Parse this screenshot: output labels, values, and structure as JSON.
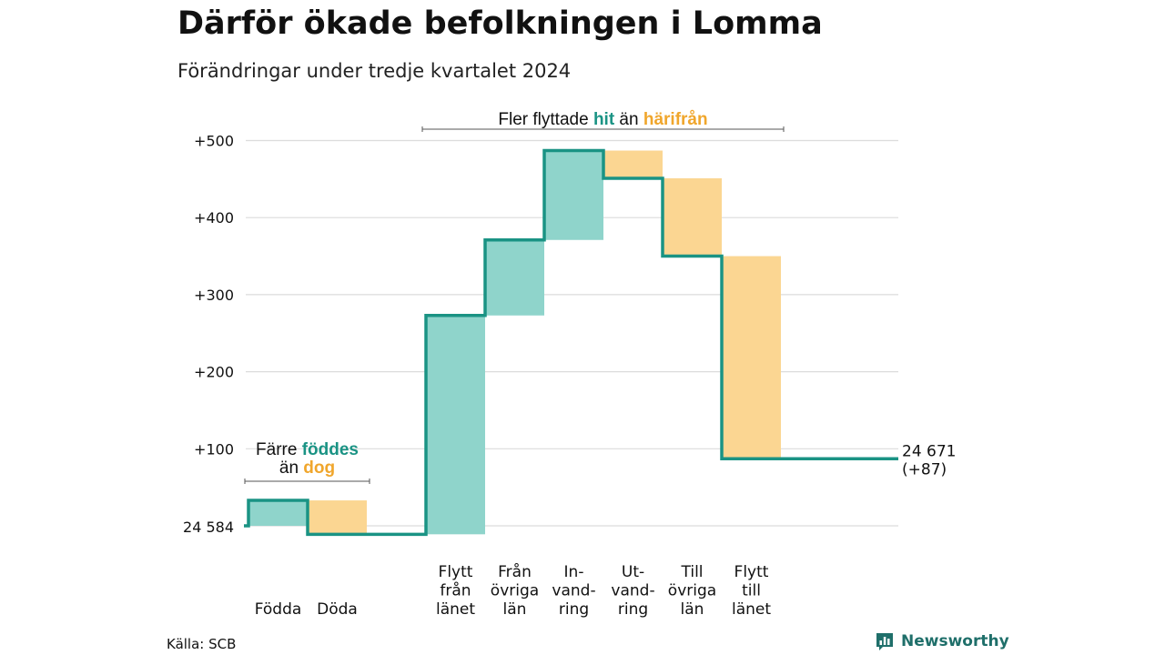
{
  "title": "Därför ökade befolkningen i Lomma",
  "subtitle": "Förändringar under tredje kvartalet 2024",
  "source": "Källa: SCB",
  "brand": {
    "name": "Newsworthy",
    "icon": "bar-chart-speech-bubble-icon",
    "color": "#1f6f6a"
  },
  "colors": {
    "line": "#1a9384",
    "increase": "#8fd4cb",
    "decrease": "#fbd692",
    "hit": "#1a9384",
    "harifran": "#f0a62c"
  },
  "chart_data": {
    "type": "waterfall",
    "start_value": 24584,
    "start_label": "24 584",
    "y_ticks": [
      {
        "value": 100,
        "label": "+100"
      },
      {
        "value": 200,
        "label": "+200"
      },
      {
        "value": 300,
        "label": "+300"
      },
      {
        "value": 400,
        "label": "+400"
      },
      {
        "value": 500,
        "label": "+500"
      }
    ],
    "ylim": [
      -15,
      515
    ],
    "grid": true,
    "categories": [
      {
        "lines": [
          "Födda"
        ],
        "delta": 33
      },
      {
        "lines": [
          "Döda"
        ],
        "delta": -44
      },
      {
        "lines": [],
        "delta": 0
      },
      {
        "lines": [
          "Flytt",
          "från",
          "länet"
        ],
        "delta": 284
      },
      {
        "lines": [
          "Från",
          "övriga",
          "län"
        ],
        "delta": 98
      },
      {
        "lines": [
          "In-",
          "vand-",
          "ring"
        ],
        "delta": 116
      },
      {
        "lines": [
          "Ut-",
          "vand-",
          "ring"
        ],
        "delta": -36
      },
      {
        "lines": [
          "Till",
          "övriga",
          "län"
        ],
        "delta": -101
      },
      {
        "lines": [
          "Flytt",
          "till",
          "länet"
        ],
        "delta": -263
      }
    ],
    "end_value_label": "24 671",
    "end_change_label": "(+87)",
    "annotations": [
      {
        "span": [
          0,
          1
        ],
        "parts": [
          {
            "text": "Färre ",
            "role": "plain"
          },
          {
            "text": "föddes",
            "role": "hit"
          },
          {
            "newline": true
          },
          {
            "text": "än ",
            "role": "plain"
          },
          {
            "text": "dog",
            "role": "harifran"
          }
        ]
      },
      {
        "span": [
          3,
          8
        ],
        "parts": [
          {
            "text": "Fler flyttade ",
            "role": "plain"
          },
          {
            "text": "hit",
            "role": "hit"
          },
          {
            "text": " än ",
            "role": "plain"
          },
          {
            "text": "härifrån",
            "role": "harifran"
          }
        ]
      }
    ]
  }
}
